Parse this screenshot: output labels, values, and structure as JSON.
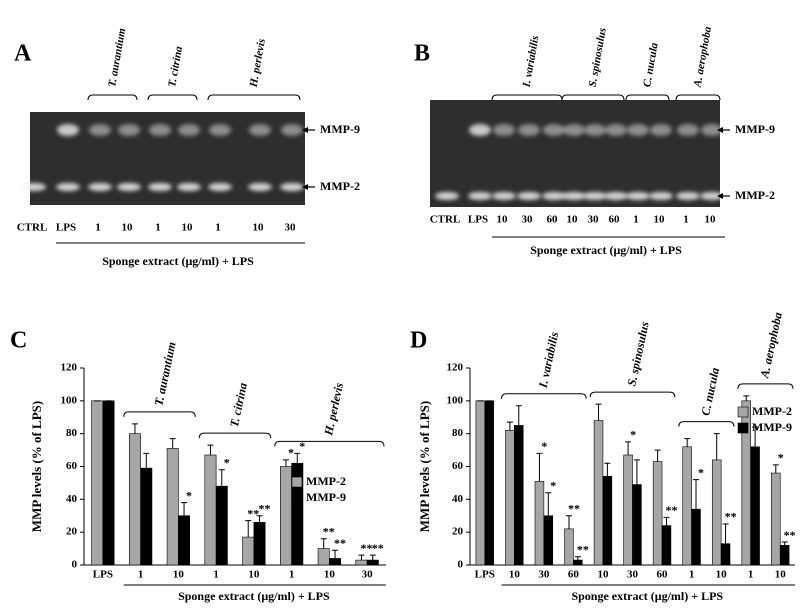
{
  "gels": [
    {
      "panel": "A",
      "species": [
        "T. aurantium",
        "T. citrina",
        "H. perlevis"
      ],
      "lanes": [
        "CTRL",
        "LPS",
        "1",
        "10",
        "1",
        "10",
        "1",
        "10",
        "30"
      ],
      "bands": [
        "MMP-9",
        "MMP-2"
      ],
      "xlabel": "Sponge extract (μg/ml) + LPS"
    },
    {
      "panel": "B",
      "species": [
        "I. variabilis",
        "S. spinosulus",
        "C. nucula",
        "A. aerophoba"
      ],
      "lanes": [
        "CTRL",
        "LPS",
        "10",
        "30",
        "60",
        "10",
        "30",
        "60",
        "1",
        "10",
        "1",
        "10"
      ],
      "bands": [
        "MMP-9",
        "MMP-2"
      ],
      "xlabel": "Sponge extract (μg/ml) + LPS"
    }
  ],
  "chart_data": [
    {
      "type": "bar",
      "panel": "C",
      "ylabel": "MMP levels  (%  of LPS)",
      "xlabel": "Sponge extract (μg/ml) + LPS",
      "categories": [
        "LPS",
        "1",
        "10",
        "1",
        "10",
        "1",
        "10",
        "30"
      ],
      "groups": [
        "T. aurantium",
        "T. citrina",
        "H. perlevis"
      ],
      "ylim": [
        0,
        120
      ],
      "yticks": [
        0,
        20,
        40,
        60,
        80,
        100,
        120
      ],
      "series": [
        {
          "name": "MMP-2",
          "color": "#a6a6a6",
          "values": [
            100,
            80,
            71,
            67,
            17,
            60,
            10,
            3
          ],
          "errors": [
            0,
            6,
            6,
            6,
            10,
            4,
            6,
            3
          ],
          "significance": [
            null,
            null,
            null,
            null,
            "**",
            "*",
            "**",
            "**"
          ]
        },
        {
          "name": "MMP-9",
          "color": "#000000",
          "values": [
            100,
            59,
            30,
            48,
            26,
            62,
            4,
            3
          ],
          "errors": [
            0,
            9,
            8,
            10,
            4,
            6,
            5,
            3
          ],
          "significance": [
            null,
            null,
            "*",
            "*",
            "**",
            "*",
            "**",
            "**"
          ]
        }
      ]
    },
    {
      "type": "bar",
      "panel": "D",
      "ylabel": "MMP levels  (%  of LPS)",
      "xlabel": "Sponge extract (μg/ml) + LPS",
      "categories": [
        "LPS",
        "10",
        "30",
        "60",
        "10",
        "30",
        "60",
        "1",
        "10",
        "1",
        "10"
      ],
      "groups": [
        "I. variabilis",
        "S. spinosulus",
        "C. nucula",
        "A. aerophoba"
      ],
      "ylim": [
        0,
        120
      ],
      "yticks": [
        0,
        20,
        40,
        60,
        80,
        100,
        120
      ],
      "series": [
        {
          "name": "MMP-2",
          "color": "#a6a6a6",
          "values": [
            100,
            82,
            51,
            22,
            88,
            67,
            63,
            72,
            64,
            100,
            56
          ],
          "errors": [
            0,
            5,
            17,
            8,
            10,
            8,
            7,
            5,
            16,
            3,
            5
          ],
          "significance": [
            null,
            null,
            "*",
            "**",
            null,
            "*",
            null,
            null,
            null,
            null,
            "*"
          ]
        },
        {
          "name": "MMP-9",
          "color": "#000000",
          "values": [
            100,
            85,
            30,
            3,
            54,
            49,
            24,
            34,
            13,
            72,
            12
          ],
          "errors": [
            0,
            12,
            14,
            2,
            8,
            15,
            5,
            18,
            12,
            12,
            2
          ],
          "significance": [
            null,
            null,
            "*",
            "**",
            null,
            null,
            "**",
            "*",
            "**",
            null,
            "**"
          ]
        }
      ]
    }
  ]
}
